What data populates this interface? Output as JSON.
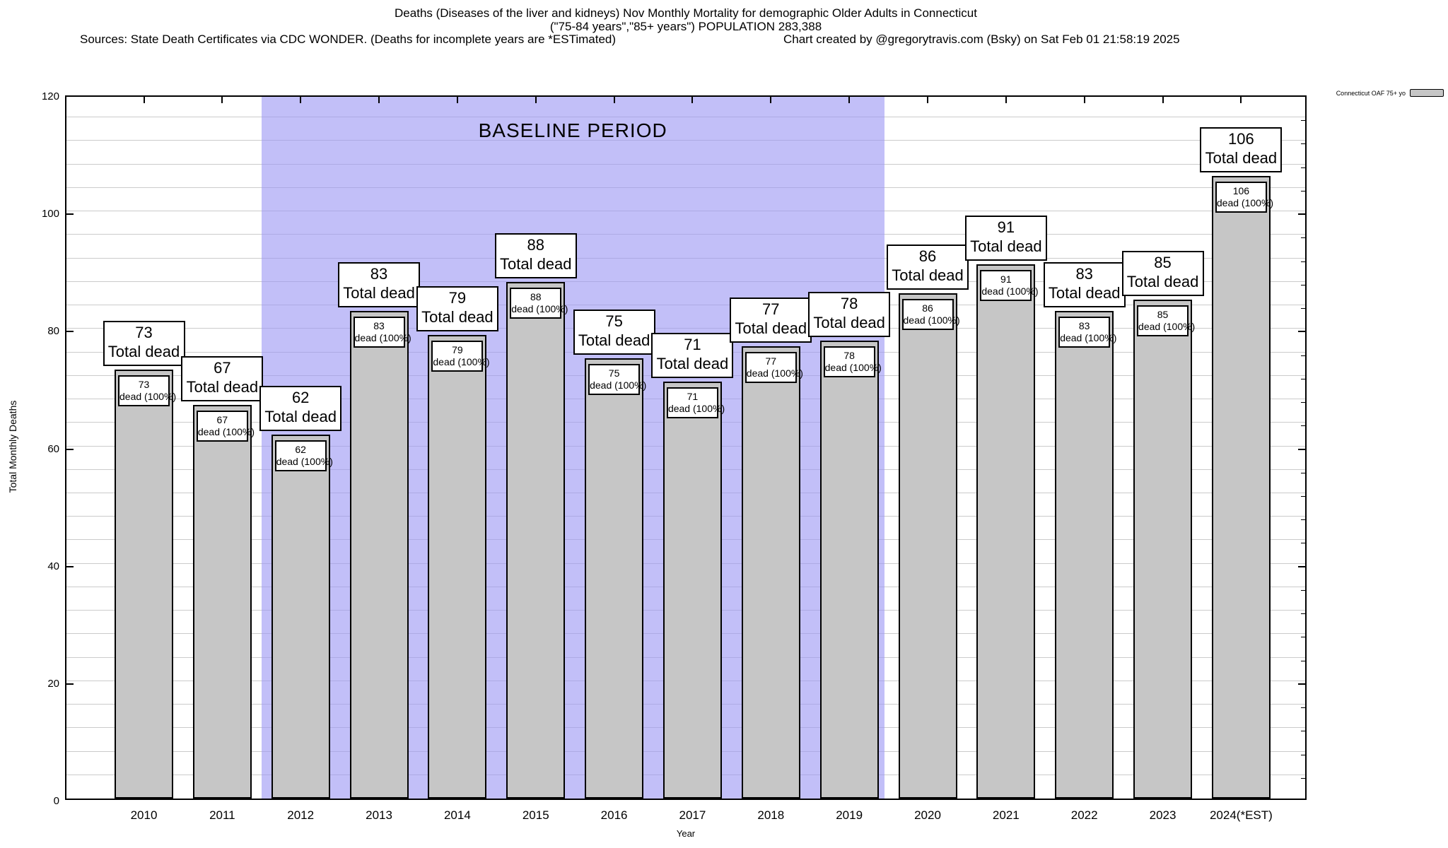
{
  "header": {
    "title_line1": "Deaths (Diseases of the liver and kidneys) Nov Monthly Mortality for demographic Older Adults in Connecticut",
    "title_line2": "(\"75-84 years\",\"85+ years\") POPULATION 283,388",
    "sources_left": "Sources: State Death Certificates via CDC WONDER. (Deaths for incomplete years are *ESTimated)",
    "credit_right": "Chart created by @gregorytravis.com (Bsky) on Sat Feb 01 21:58:19 2025"
  },
  "legend": {
    "label": "Connecticut OAF 75+ yo",
    "swatch_color": "#c6c6c6"
  },
  "chart_data": {
    "type": "bar",
    "title": "Deaths (Diseases of the liver and kidneys) Nov Monthly Mortality for demographic Older Adults in Connecticut",
    "xlabel": "Year",
    "ylabel": "Total Monthly Deaths",
    "ylim": [
      0,
      120
    ],
    "yticks": [
      0,
      20,
      40,
      60,
      80,
      100,
      120
    ],
    "minor_grid_step": 4,
    "grid": true,
    "legend_position": "top-right-outside",
    "categories": [
      "2010",
      "2011",
      "2012",
      "2013",
      "2014",
      "2015",
      "2016",
      "2017",
      "2018",
      "2019",
      "2020",
      "2021",
      "2022",
      "2023",
      "2024(*EST)"
    ],
    "series": [
      {
        "name": "Connecticut OAF 75+ yo",
        "values": [
          73,
          67,
          62,
          83,
          79,
          88,
          75,
          71,
          77,
          78,
          86,
          91,
          83,
          85,
          106
        ]
      }
    ],
    "bar_color": "#c6c6c6",
    "bar_top_label_suffix": "Total dead",
    "bar_inner_label_suffix": "dead (100%)",
    "baseline": {
      "label": "BASELINE PERIOD",
      "start_category": "2012",
      "end_category": "2019",
      "color": "#c4c1f7"
    }
  }
}
